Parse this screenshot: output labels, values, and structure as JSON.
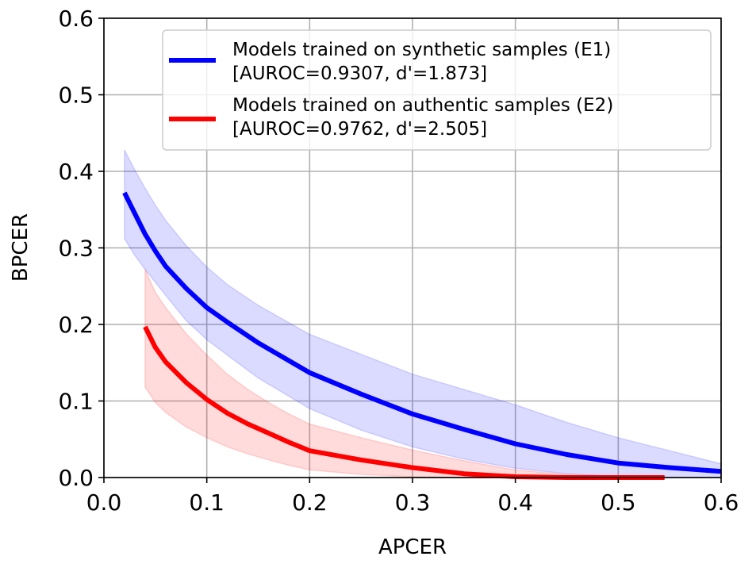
{
  "chart_data": {
    "type": "line",
    "title": "",
    "xlabel": "APCER",
    "ylabel": "BPCER",
    "xlim": [
      0.0,
      0.6
    ],
    "ylim": [
      0.0,
      0.6
    ],
    "grid": true,
    "legend_position": "top-right",
    "xticks": [
      "0.0",
      "0.1",
      "0.2",
      "0.3",
      "0.4",
      "0.5",
      "0.6"
    ],
    "yticks": [
      "0.0",
      "0.1",
      "0.2",
      "0.3",
      "0.4",
      "0.5",
      "0.6"
    ],
    "series": [
      {
        "name": "Models trained on synthetic samples (E1)",
        "stats": "[AUROC=0.9307, d'=1.873]",
        "color": "#0000ff",
        "band_color": "#0000ff",
        "x": [
          0.02,
          0.03,
          0.04,
          0.05,
          0.06,
          0.08,
          0.1,
          0.12,
          0.15,
          0.2,
          0.25,
          0.3,
          0.35,
          0.4,
          0.45,
          0.5,
          0.55,
          0.6
        ],
        "y": [
          0.372,
          0.345,
          0.318,
          0.296,
          0.276,
          0.247,
          0.222,
          0.203,
          0.176,
          0.137,
          0.109,
          0.083,
          0.063,
          0.044,
          0.03,
          0.019,
          0.013,
          0.008
        ],
        "lower": [
          0.312,
          0.29,
          0.272,
          0.255,
          0.238,
          0.205,
          0.18,
          0.16,
          0.13,
          0.09,
          0.062,
          0.04,
          0.024,
          0.012,
          0.005,
          0.001,
          0.0,
          0.0
        ],
        "upper": [
          0.428,
          0.402,
          0.378,
          0.356,
          0.336,
          0.303,
          0.275,
          0.252,
          0.225,
          0.187,
          0.161,
          0.135,
          0.115,
          0.095,
          0.072,
          0.052,
          0.035,
          0.018
        ]
      },
      {
        "name": "Models trained on authentic samples (E2)",
        "stats": "[AUROC=0.9762, d'=2.505]",
        "color": "#ff0000",
        "band_color": "#ff0000",
        "x": [
          0.04,
          0.05,
          0.06,
          0.08,
          0.1,
          0.12,
          0.14,
          0.16,
          0.18,
          0.2,
          0.25,
          0.3,
          0.35,
          0.4,
          0.45,
          0.5,
          0.545
        ],
        "y": [
          0.197,
          0.17,
          0.151,
          0.124,
          0.102,
          0.084,
          0.07,
          0.058,
          0.046,
          0.035,
          0.023,
          0.013,
          0.005,
          0.001,
          0.0,
          0.0,
          0.0
        ],
        "lower": [
          0.118,
          0.098,
          0.085,
          0.066,
          0.052,
          0.04,
          0.031,
          0.023,
          0.016,
          0.01,
          0.004,
          0.001,
          0.0,
          0.0,
          0.0,
          0.0,
          0.0
        ],
        "upper": [
          0.272,
          0.242,
          0.222,
          0.188,
          0.16,
          0.135,
          0.115,
          0.098,
          0.083,
          0.07,
          0.052,
          0.036,
          0.022,
          0.01,
          0.004,
          0.001,
          0.0
        ]
      }
    ]
  }
}
